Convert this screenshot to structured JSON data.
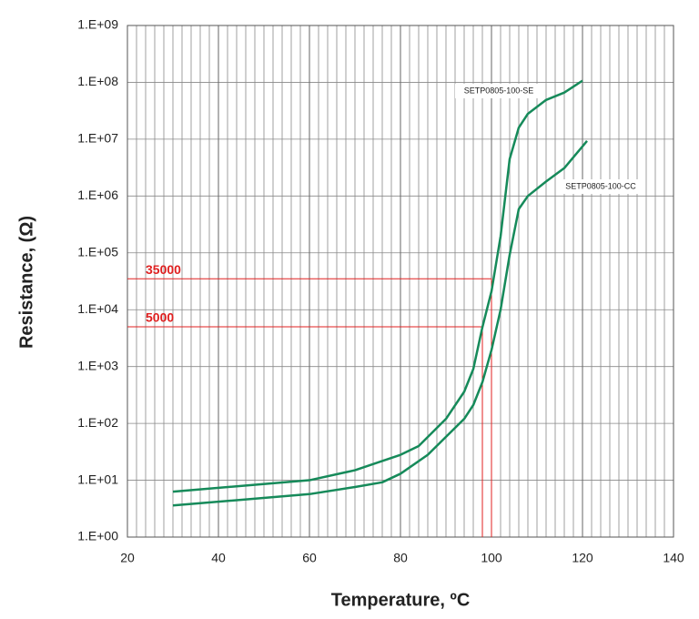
{
  "chart_data": {
    "type": "line",
    "xlabel": "Temperature, ºC",
    "ylabel": "Resistance, (Ω)",
    "log_y": true,
    "grid": true,
    "xlim": [
      20,
      140
    ],
    "xticks": [
      20,
      40,
      60,
      80,
      100,
      120,
      140
    ],
    "ylim": [
      1,
      1000000000
    ],
    "yticks": [
      {
        "value": 1,
        "label": "1.E+00"
      },
      {
        "value": 10,
        "label": "1.E+01"
      },
      {
        "value": 100,
        "label": "1.E+02"
      },
      {
        "value": 1000,
        "label": "1.E+03"
      },
      {
        "value": 10000,
        "label": "1.E+04"
      },
      {
        "value": 100000,
        "label": "1.E+05"
      },
      {
        "value": 1000000,
        "label": "1.E+06"
      },
      {
        "value": 10000000,
        "label": "1.E+07"
      },
      {
        "value": 100000000,
        "label": "1.E+08"
      },
      {
        "value": 1000000000,
        "label": "1.E+09"
      }
    ],
    "series": [
      {
        "name": "SETP0805-100-SE",
        "color": "#168a5a",
        "x": [
          30,
          60,
          70,
          80,
          84,
          90,
          94,
          96,
          98,
          100,
          102,
          104,
          106,
          108,
          112,
          116,
          120
        ],
        "values": [
          6.3,
          10,
          15,
          28,
          40,
          120,
          360,
          900,
          4900,
          21000,
          195000,
          4500000,
          16000000,
          28000000,
          49000000,
          66000000,
          107000000
        ]
      },
      {
        "name": "SETP0805-100-CC",
        "color": "#168a5a",
        "x": [
          30,
          60,
          70,
          76,
          80,
          86,
          90,
          94,
          96,
          98,
          100,
          102,
          104,
          106,
          108,
          112,
          116,
          121
        ],
        "values": [
          3.6,
          5.7,
          7.6,
          9.2,
          13,
          28,
          58,
          120,
          210,
          530,
          1950,
          10000,
          93000,
          590000,
          1000000,
          1800000,
          3100000,
          9300000
        ]
      }
    ],
    "annotations": [
      {
        "x": 100,
        "y": 35000,
        "color": "#e02020"
      },
      {
        "x": 98,
        "y": 5000,
        "color": "#e02020"
      }
    ]
  }
}
